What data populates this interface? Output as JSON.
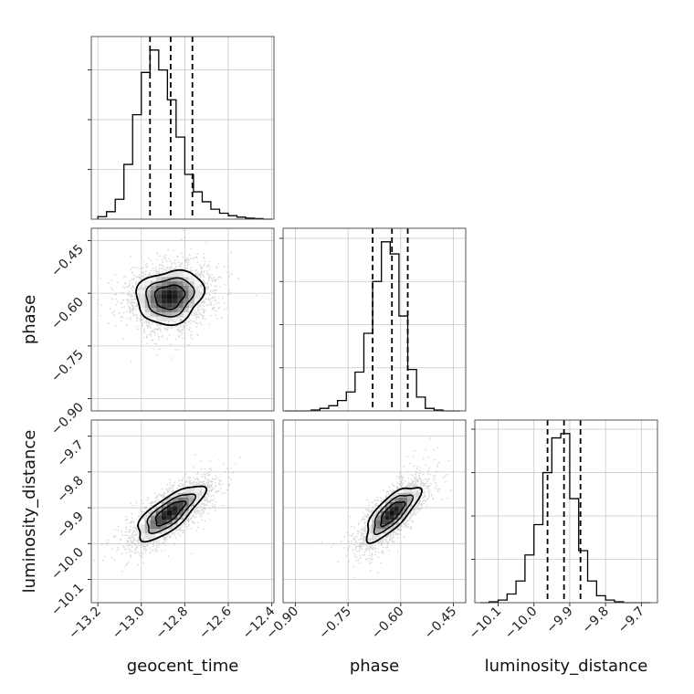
{
  "chart_data": {
    "type": "corner",
    "parameters": [
      "geocent_time",
      "phase",
      "luminosity_distance"
    ],
    "grid": true,
    "axes": {
      "geocent_time": {
        "range": [
          -13.23,
          -12.39
        ],
        "ticks": [
          -13.2,
          -13.0,
          -12.8,
          -12.6,
          -12.4
        ],
        "tick_labels": [
          "−13.2",
          "−13.0",
          "−12.8",
          "−12.6",
          "−12.4"
        ]
      },
      "phase": {
        "range": [
          -0.935,
          -0.415
        ],
        "ticks": [
          -0.9,
          -0.75,
          -0.6,
          -0.45
        ],
        "tick_labels": [
          "−0.90",
          "−0.75",
          "−0.60",
          "−0.45"
        ]
      },
      "luminosity_distance": {
        "range": [
          -10.165,
          -9.655
        ],
        "ticks": [
          -10.1,
          -10.0,
          -9.9,
          -9.8,
          -9.7
        ],
        "tick_labels": [
          "−10.1",
          "−10.0",
          "−9.9",
          "−9.8",
          "−9.7"
        ]
      }
    },
    "histograms": [
      {
        "parameter": "geocent_time",
        "bins": [
          -13.2,
          -13.16,
          -13.12,
          -13.08,
          -13.04,
          -13.0,
          -12.96,
          -12.92,
          -12.88,
          -12.84,
          -12.8,
          -12.76,
          -12.72,
          -12.68,
          -12.64,
          -12.6,
          -12.56,
          -12.52,
          -12.48,
          -12.44,
          -12.4
        ],
        "counts": [
          5,
          15,
          40,
          110,
          210,
          295,
          340,
          300,
          240,
          165,
          90,
          55,
          35,
          20,
          12,
          7,
          4,
          2,
          1,
          0
        ],
        "quantiles": [
          -12.96,
          -12.865,
          -12.765
        ]
      },
      {
        "parameter": "phase",
        "bins": [
          -0.93,
          -0.905,
          -0.88,
          -0.855,
          -0.83,
          -0.805,
          -0.78,
          -0.755,
          -0.73,
          -0.705,
          -0.68,
          -0.655,
          -0.63,
          -0.605,
          -0.58,
          -0.555,
          -0.53,
          -0.505,
          -0.48,
          -0.455,
          -0.43
        ],
        "counts": [
          0,
          0,
          0,
          1,
          3,
          6,
          12,
          22,
          45,
          90,
          150,
          196,
          182,
          110,
          48,
          16,
          3,
          1,
          0,
          0
        ],
        "quantiles": [
          -0.68,
          -0.625,
          -0.58
        ]
      },
      {
        "parameter": "luminosity_distance",
        "bins": [
          -10.15,
          -10.125,
          -10.1,
          -10.075,
          -10.05,
          -10.025,
          -10.0,
          -9.975,
          -9.95,
          -9.925,
          -9.9,
          -9.875,
          -9.85,
          -9.825,
          -9.8,
          -9.775,
          -9.75,
          -9.725,
          -9.7,
          -9.675
        ],
        "counts": [
          0,
          1,
          3,
          10,
          25,
          55,
          90,
          150,
          190,
          195,
          120,
          60,
          25,
          8,
          3,
          1,
          0,
          0,
          0
        ],
        "quantiles": [
          -9.962,
          -9.916,
          -9.87
        ]
      }
    ],
    "scatter_panels": [
      {
        "x": "geocent_time",
        "y": "phase",
        "x_mean": -12.87,
        "x_sd": 0.09,
        "y_mean": -0.61,
        "y_sd": 0.045,
        "correlation": 0.15
      },
      {
        "x": "geocent_time",
        "y": "luminosity_distance",
        "x_mean": -12.87,
        "x_sd": 0.09,
        "y_mean": -9.915,
        "y_sd": 0.045,
        "correlation": 0.75
      },
      {
        "x": "phase",
        "y": "luminosity_distance",
        "x_mean": -0.625,
        "x_sd": 0.045,
        "y_mean": -9.915,
        "y_sd": 0.045,
        "correlation": 0.75
      }
    ],
    "colors": {
      "line": "#000000",
      "quantile_line": "#000000",
      "points": "#888888",
      "grid": "#c8c8c8",
      "density_dark": "#111111",
      "density_light": "#ffffff"
    }
  }
}
